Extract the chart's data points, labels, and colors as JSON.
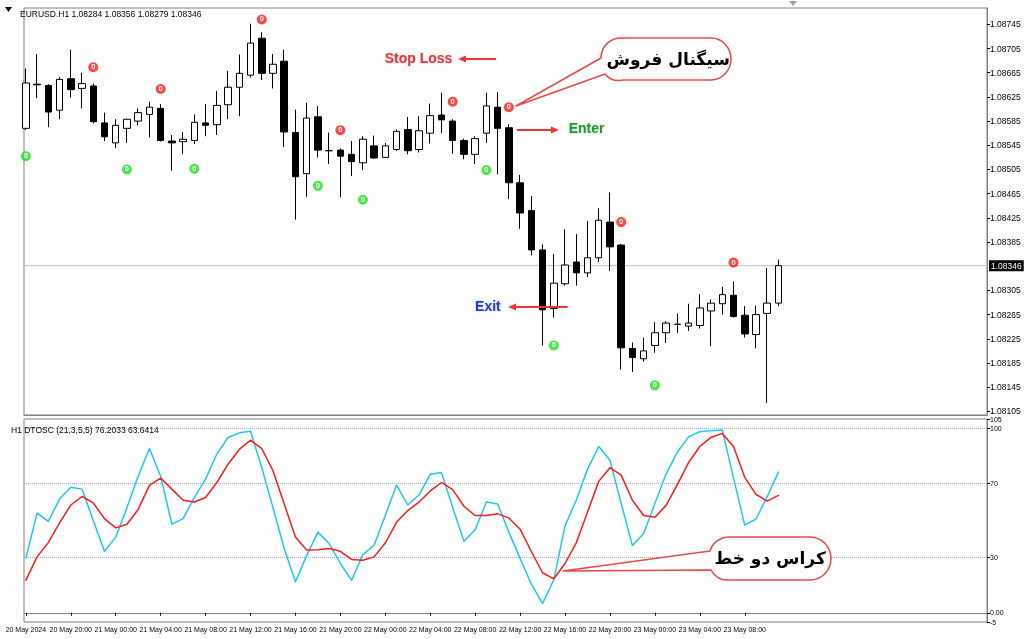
{
  "chart_data": [
    {
      "type": "candlestick",
      "title": "EURUSD.H1 1.08284 1.08356 1.08279 1.08346",
      "x": [
        "2024-05-20T16:00",
        "2024-05-20T17:00",
        "2024-05-20T18:00",
        "2024-05-20T19:00",
        "2024-05-20T20:00",
        "2024-05-20T21:00",
        "2024-05-20T22:00",
        "2024-05-20T23:00",
        "2024-05-21T00:00",
        "2024-05-21T01:00",
        "2024-05-21T02:00",
        "2024-05-21T03:00",
        "2024-05-21T04:00",
        "2024-05-21T05:00",
        "2024-05-21T06:00",
        "2024-05-21T07:00",
        "2024-05-21T08:00",
        "2024-05-21T09:00",
        "2024-05-21T10:00",
        "2024-05-21T11:00",
        "2024-05-21T12:00",
        "2024-05-21T13:00",
        "2024-05-21T14:00",
        "2024-05-21T15:00",
        "2024-05-21T16:00",
        "2024-05-21T17:00",
        "2024-05-21T18:00",
        "2024-05-21T19:00",
        "2024-05-21T20:00",
        "2024-05-21T21:00",
        "2024-05-21T22:00",
        "2024-05-21T23:00",
        "2024-05-22T00:00",
        "2024-05-22T01:00",
        "2024-05-22T02:00",
        "2024-05-22T03:00",
        "2024-05-22T04:00",
        "2024-05-22T05:00",
        "2024-05-22T06:00",
        "2024-05-22T07:00",
        "2024-05-22T08:00",
        "2024-05-22T09:00",
        "2024-05-22T10:00",
        "2024-05-22T11:00",
        "2024-05-22T12:00",
        "2024-05-22T13:00",
        "2024-05-22T14:00",
        "2024-05-22T15:00",
        "2024-05-22T16:00",
        "2024-05-22T17:00",
        "2024-05-22T18:00",
        "2024-05-22T19:00",
        "2024-05-22T20:00",
        "2024-05-22T21:00",
        "2024-05-22T22:00",
        "2024-05-22T23:00",
        "2024-05-23T00:00",
        "2024-05-23T01:00",
        "2024-05-23T02:00",
        "2024-05-23T03:00",
        "2024-05-23T04:00",
        "2024-05-23T05:00",
        "2024-05-23T06:00",
        "2024-05-23T07:00",
        "2024-05-23T08:00",
        "2024-05-23T09:00",
        "2024-05-23T10:00",
        "2024-05-23T11:00"
      ],
      "ohlc": [
        [
          1.08573,
          1.08672,
          1.0857,
          1.08648
        ],
        [
          1.08646,
          1.08696,
          1.08623,
          1.08645
        ],
        [
          1.08644,
          1.08646,
          1.08575,
          1.086
        ],
        [
          1.08603,
          1.08658,
          1.08588,
          1.08654
        ],
        [
          1.08655,
          1.08703,
          1.08624,
          1.08637
        ],
        [
          1.08639,
          1.08665,
          1.08606,
          1.08647
        ],
        [
          1.08643,
          1.08647,
          1.08581,
          1.08584
        ],
        [
          1.08582,
          1.08599,
          1.08552,
          1.08559
        ],
        [
          1.08549,
          1.08588,
          1.0854,
          1.08578
        ],
        [
          1.08573,
          1.08589,
          1.08549,
          1.08588
        ],
        [
          1.08585,
          1.08606,
          1.08578,
          1.08599
        ],
        [
          1.08596,
          1.08617,
          1.08558,
          1.08608
        ],
        [
          1.08606,
          1.08613,
          1.08551,
          1.08553
        ],
        [
          1.08552,
          1.08562,
          1.08503,
          1.08549
        ],
        [
          1.08551,
          1.08567,
          1.08531,
          1.08555
        ],
        [
          1.08553,
          1.08596,
          1.08547,
          1.08583
        ],
        [
          1.08582,
          1.08613,
          1.0856,
          1.08578
        ],
        [
          1.08579,
          1.08635,
          1.08562,
          1.08611
        ],
        [
          1.08612,
          1.08668,
          1.08588,
          1.08641
        ],
        [
          1.08641,
          1.08695,
          1.08593,
          1.08664
        ],
        [
          1.08661,
          1.08746,
          1.08657,
          1.08714
        ],
        [
          1.08722,
          1.08732,
          1.08653,
          1.08664
        ],
        [
          1.08664,
          1.08696,
          1.08639,
          1.08679
        ],
        [
          1.08684,
          1.08703,
          1.08542,
          1.08567
        ],
        [
          1.08566,
          1.08604,
          1.08422,
          1.08493
        ],
        [
          1.08498,
          1.08615,
          1.0846,
          1.0859
        ],
        [
          1.08592,
          1.0861,
          1.08525,
          1.08537
        ],
        [
          1.08536,
          1.08566,
          1.08514,
          1.08536
        ],
        [
          1.08537,
          1.0854,
          1.08459,
          1.08527
        ],
        [
          1.0853,
          1.08552,
          1.08494,
          1.08518
        ],
        [
          1.08516,
          1.0856,
          1.08504,
          1.08555
        ],
        [
          1.08544,
          1.08561,
          1.08523,
          1.08524
        ],
        [
          1.08525,
          1.08549,
          1.08524,
          1.08544
        ],
        [
          1.08538,
          1.08571,
          1.08536,
          1.08568
        ],
        [
          1.08571,
          1.08592,
          1.0853,
          1.08536
        ],
        [
          1.08538,
          1.08593,
          1.08533,
          1.08569
        ],
        [
          1.08565,
          1.08614,
          1.08548,
          1.08594
        ],
        [
          1.08595,
          1.08632,
          1.08565,
          1.08587
        ],
        [
          1.08585,
          1.08588,
          1.08531,
          1.08553
        ],
        [
          1.08553,
          1.08556,
          1.08522,
          1.0853
        ],
        [
          1.0853,
          1.0856,
          1.08514,
          1.08556
        ],
        [
          1.08565,
          1.08632,
          1.08549,
          1.0861
        ],
        [
          1.08608,
          1.08633,
          1.08497,
          1.08573
        ],
        [
          1.08574,
          1.0858,
          1.08456,
          1.08483
        ],
        [
          1.08483,
          1.08496,
          1.08407,
          1.08433
        ],
        [
          1.08437,
          1.08461,
          1.08363,
          1.08372
        ],
        [
          1.08372,
          1.08381,
          1.08214,
          1.08273
        ],
        [
          1.08275,
          1.08365,
          1.0826,
          1.08317
        ],
        [
          1.08316,
          1.08406,
          1.08313,
          1.08347
        ],
        [
          1.08352,
          1.08398,
          1.08313,
          1.08334
        ],
        [
          1.08334,
          1.0842,
          1.08327,
          1.08359
        ],
        [
          1.08359,
          1.08441,
          1.08352,
          1.08421
        ],
        [
          1.08418,
          1.08467,
          1.08337,
          1.08377
        ],
        [
          1.0838,
          1.08382,
          1.08174,
          1.0821
        ],
        [
          1.08209,
          1.08219,
          1.0817,
          1.08194
        ],
        [
          1.08192,
          1.08227,
          1.08187,
          1.08205
        ],
        [
          1.08214,
          1.08253,
          1.08202,
          1.08235
        ],
        [
          1.08235,
          1.08254,
          1.08218,
          1.08251
        ],
        [
          1.08249,
          1.08267,
          1.08235,
          1.08249
        ],
        [
          1.08246,
          1.08283,
          1.08238,
          1.08251
        ],
        [
          1.08247,
          1.08299,
          1.08242,
          1.08276
        ],
        [
          1.08271,
          1.0829,
          1.08213,
          1.08284
        ],
        [
          1.08283,
          1.08311,
          1.08265,
          1.08298
        ],
        [
          1.08297,
          1.0832,
          1.0826,
          1.08262
        ],
        [
          1.08264,
          1.08279,
          1.08227,
          1.08233
        ],
        [
          1.08232,
          1.0828,
          1.08209,
          1.08265
        ],
        [
          1.08267,
          1.08342,
          1.08119,
          1.08284
        ],
        [
          1.08284,
          1.08356,
          1.08279,
          1.08346
        ]
      ],
      "color": "#000000",
      "xlim": [
        "2024-05-20T15:50",
        "2024-05-24T05:34"
      ],
      "ylim": [
        1.08099,
        1.08772
      ],
      "yticks": [
        1.08105,
        1.08145,
        1.08185,
        1.08225,
        1.08265,
        1.08305,
        1.08385,
        1.08425,
        1.08465,
        1.08505,
        1.08545,
        1.08585,
        1.08625,
        1.08665,
        1.08705,
        1.08745
      ],
      "ref_lines": [
        {
          "axis": "y",
          "value": 1.08346,
          "label": "1.08346",
          "color": "#c0c0c8"
        }
      ],
      "tick_labels": "y",
      "series": [
        {
          "type": "scatter",
          "color": "#ff1a1a",
          "marker": "circle",
          "x": [
            "2024-05-20T22:00",
            "2024-05-21T04:00",
            "2024-05-21T13:00",
            "2024-05-21T20:00",
            "2024-05-22T06:00",
            "2024-05-22T11:00",
            "2024-05-22T21:00",
            "2024-05-23T07:00"
          ],
          "values": [
            1.08674,
            1.08638,
            1.08753,
            1.0857,
            1.08617,
            1.08608,
            1.08418,
            1.08351
          ]
        },
        {
          "type": "scatter",
          "color": "#22e022",
          "marker": "circle",
          "x": [
            "2024-05-20T16:00",
            "2024-05-21T01:00",
            "2024-05-21T07:00",
            "2024-05-21T18:00",
            "2024-05-21T22:00",
            "2024-05-22T09:00",
            "2024-05-22T15:00",
            "2024-05-23T00:00"
          ],
          "values": [
            1.08527,
            1.08505,
            1.08506,
            1.08478,
            1.08455,
            1.08504,
            1.08214,
            1.08148
          ]
        }
      ],
      "annotations": [
        "Stop Loss",
        "سیگنال فروش",
        "Enter",
        "Exit",
        {
          "text": "0",
          "x": "2024-05-20T22:00",
          "y": 1.08674
        },
        {
          "text": "0",
          "x": "2024-05-21T04:00",
          "y": 1.08638
        },
        {
          "text": "0",
          "x": "2024-05-21T13:00",
          "y": 1.08753
        },
        {
          "text": "0",
          "x": "2024-05-21T20:00",
          "y": 1.0857
        },
        {
          "text": "0",
          "x": "2024-05-22T06:00",
          "y": 1.08617
        },
        {
          "text": "0",
          "x": "2024-05-22T11:00",
          "y": 1.08608
        },
        {
          "text": "0",
          "x": "2024-05-22T21:00",
          "y": 1.08418
        },
        {
          "text": "0",
          "x": "2024-05-23T07:00",
          "y": 1.08351
        },
        {
          "text": "0",
          "x": "2024-05-20T16:00",
          "y": 1.08527
        },
        {
          "text": "0",
          "x": "2024-05-21T01:00",
          "y": 1.08505
        },
        {
          "text": "0",
          "x": "2024-05-21T07:00",
          "y": 1.08506
        },
        {
          "text": "0",
          "x": "2024-05-21T18:00",
          "y": 1.08478
        },
        {
          "text": "0",
          "x": "2024-05-21T22:00",
          "y": 1.08455
        },
        {
          "text": "0",
          "x": "2024-05-22T09:00",
          "y": 1.08504
        },
        {
          "text": "0",
          "x": "2024-05-22T15:00",
          "y": 1.08214
        },
        {
          "text": "0",
          "x": "2024-05-23T00:00",
          "y": 1.08148
        }
      ]
    },
    {
      "type": "line",
      "title": "H1 DTOSC (21,3,5,5) 76.2033 63.6414",
      "x": [
        "2024-05-20T16:00",
        "2024-05-20T17:00",
        "2024-05-20T18:00",
        "2024-05-20T19:00",
        "2024-05-20T20:00",
        "2024-05-20T21:00",
        "2024-05-20T22:00",
        "2024-05-20T23:00",
        "2024-05-21T00:00",
        "2024-05-21T01:00",
        "2024-05-21T02:00",
        "2024-05-21T03:00",
        "2024-05-21T04:00",
        "2024-05-21T05:00",
        "2024-05-21T06:00",
        "2024-05-21T07:00",
        "2024-05-21T08:00",
        "2024-05-21T09:00",
        "2024-05-21T10:00",
        "2024-05-21T11:00",
        "2024-05-21T12:00",
        "2024-05-21T13:00",
        "2024-05-21T14:00",
        "2024-05-21T15:00",
        "2024-05-21T16:00",
        "2024-05-21T17:00",
        "2024-05-21T18:00",
        "2024-05-21T19:00",
        "2024-05-21T20:00",
        "2024-05-21T21:00",
        "2024-05-21T22:00",
        "2024-05-21T23:00",
        "2024-05-22T00:00",
        "2024-05-22T01:00",
        "2024-05-22T02:00",
        "2024-05-22T03:00",
        "2024-05-22T04:00",
        "2024-05-22T05:00",
        "2024-05-22T06:00",
        "2024-05-22T07:00",
        "2024-05-22T08:00",
        "2024-05-22T09:00",
        "2024-05-22T10:00",
        "2024-05-22T11:00",
        "2024-05-22T12:00",
        "2024-05-22T13:00",
        "2024-05-22T14:00",
        "2024-05-22T15:00",
        "2024-05-22T16:00",
        "2024-05-22T17:00",
        "2024-05-22T18:00",
        "2024-05-22T19:00",
        "2024-05-22T20:00",
        "2024-05-22T21:00",
        "2024-05-22T22:00",
        "2024-05-22T23:00",
        "2024-05-23T00:00",
        "2024-05-23T01:00",
        "2024-05-23T02:00",
        "2024-05-23T03:00",
        "2024-05-23T04:00",
        "2024-05-23T05:00",
        "2024-05-23T06:00",
        "2024-05-23T07:00",
        "2024-05-23T08:00",
        "2024-05-23T09:00",
        "2024-05-23T10:00",
        "2024-05-23T11:00"
      ],
      "xlim": [
        "2024-05-20T15:50",
        "2024-05-24T05:34"
      ],
      "xticks": [
        {
          "value": "2024-05-20T16:00",
          "label": "20 May 2024"
        },
        {
          "value": "2024-05-20T20:00",
          "label": "20 May 20:00"
        },
        {
          "value": "2024-05-21T00:00",
          "label": "21 May 00:00"
        },
        {
          "value": "2024-05-21T04:00",
          "label": "21 May 04:00"
        },
        {
          "value": "2024-05-21T08:00",
          "label": "21 May 08:00"
        },
        {
          "value": "2024-05-21T12:00",
          "label": "21 May 12:00"
        },
        {
          "value": "2024-05-21T16:00",
          "label": "21 May 16:00"
        },
        {
          "value": "2024-05-21T20:00",
          "label": "21 May 20:00"
        },
        {
          "value": "2024-05-22T00:00",
          "label": "22 May 00:00"
        },
        {
          "value": "2024-05-22T04:00",
          "label": "22 May 04:00"
        },
        {
          "value": "2024-05-22T08:00",
          "label": "22 May 08:00"
        },
        {
          "value": "2024-05-22T12:00",
          "label": "22 May 12:00"
        },
        {
          "value": "2024-05-22T16:00",
          "label": "22 May 16:00"
        },
        {
          "value": "2024-05-22T20:00",
          "label": "22 May 20:00"
        },
        {
          "value": "2024-05-23T00:00",
          "label": "23 May 00:00"
        },
        {
          "value": "2024-05-23T04:00",
          "label": "23 May 04:00"
        },
        {
          "value": "2024-05-23T08:00",
          "label": "23 May 08:00"
        }
      ],
      "series": [
        {
          "color": "#1ec8f5",
          "values": [
            29.7,
            54,
            49.5,
            61.6,
            68,
            67,
            50,
            33.3,
            41,
            57,
            74,
            89,
            74,
            48,
            51,
            62.5,
            72.4,
            86,
            95,
            97.5,
            98.4,
            78.7,
            57,
            34.8,
            16.8,
            31,
            43.7,
            37.5,
            26.7,
            17.6,
            31.5,
            36.6,
            52.7,
            69.2,
            58.4,
            63.8,
            75,
            76,
            57,
            38.7,
            45,
            60,
            59,
            43.7,
            29.5,
            15.6,
            5,
            17.8,
            47.1,
            61,
            77.7,
            90.1,
            82.7,
            59.2,
            36.4,
            43,
            59.2,
            75.3,
            87,
            95.3,
            98.1,
            98.7,
            99,
            73.1,
            47.5,
            50.8,
            62.9,
            76.2033
          ]
        },
        {
          "color": "#ff1a1a",
          "values": [
            17.7,
            30.3,
            38,
            48.7,
            58.4,
            63,
            59.5,
            51,
            46,
            48,
            56,
            69,
            73,
            67,
            61,
            60,
            62.5,
            70.6,
            80.5,
            88.5,
            93.5,
            89,
            77,
            59,
            41,
            34,
            34.2,
            34.8,
            33.3,
            28.9,
            28.5,
            30.3,
            37.8,
            49,
            55.4,
            60,
            66,
            70.6,
            66.7,
            57.7,
            52.7,
            52.7,
            53.6,
            51.4,
            45.3,
            33.2,
            21.7,
            18.4,
            26.7,
            37.9,
            54.5,
            71.2,
            78.6,
            74.6,
            61,
            52.7,
            51.8,
            58.2,
            69.4,
            81.4,
            90.1,
            95,
            97.2,
            90.1,
            73.4,
            64.2,
            60.5,
            63.6414
          ]
        }
      ],
      "ylim": [
        -5,
        105
      ],
      "yticks": [
        -5,
        {
          "value": 0,
          "label": "0.00"
        },
        30,
        70,
        100,
        105
      ],
      "grid": "y",
      "marker": "none",
      "annotations": [
        "کراس دو خط"
      ]
    }
  ]
}
